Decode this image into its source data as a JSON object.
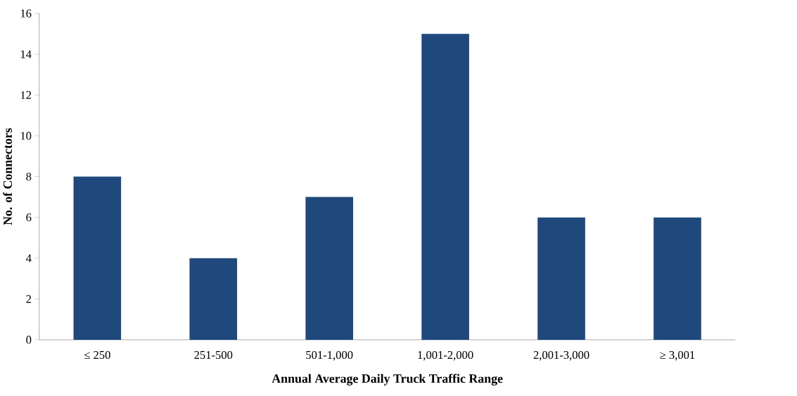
{
  "chart_data": {
    "type": "bar",
    "xlabel": "Annual Average Daily Truck Traffic Range",
    "ylabel": "No. of Connectors",
    "categories": [
      "≤ 250",
      "251-500",
      "501-1,000",
      "1,001-2,000",
      "2,001-3,000",
      "≥ 3,001"
    ],
    "values": [
      8,
      4,
      7,
      15,
      6,
      6
    ],
    "color": "#1f497d",
    "ylim": [
      0,
      16
    ],
    "yticks": [
      0,
      2,
      4,
      6,
      8,
      10,
      12,
      14,
      16
    ]
  }
}
